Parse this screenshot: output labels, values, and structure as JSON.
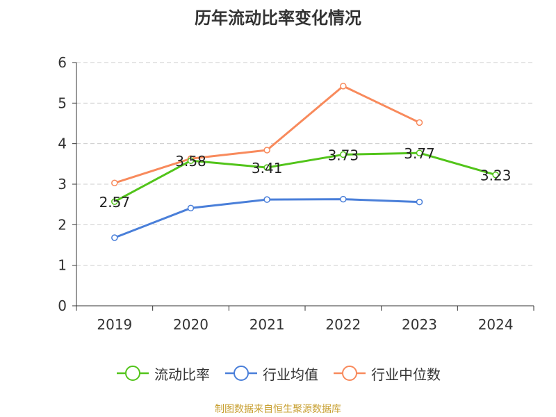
{
  "title": "历年流动比率变化情况",
  "source": "制图数据来自恒生聚源数据库",
  "colors": {
    "current_ratio": "#52c41a",
    "industry_mean": "#4a7fd9",
    "industry_median": "#f88a5c",
    "grid": "#cccccc",
    "axis": "#333333",
    "label": "#222222"
  },
  "chart_data": {
    "type": "line",
    "title": "历年流动比率变化情况",
    "categories": [
      "2019",
      "2020",
      "2021",
      "2022",
      "2023",
      "2024"
    ],
    "ylim": [
      0,
      6
    ],
    "yticks": [
      "0",
      "1",
      "2",
      "3",
      "4",
      "5",
      "6"
    ],
    "grid": true,
    "legend_position": "bottom",
    "series": [
      {
        "name": "流动比率",
        "color_key": "current_ratio",
        "values": [
          2.57,
          3.58,
          3.41,
          3.73,
          3.77,
          3.23
        ],
        "labels": [
          "2.57",
          "3.58",
          "3.41",
          "3.73",
          "3.77",
          "3.23"
        ]
      },
      {
        "name": "行业均值",
        "color_key": "industry_mean",
        "values": [
          1.68,
          2.41,
          2.62,
          2.63,
          2.56,
          null
        ]
      },
      {
        "name": "行业中位数",
        "color_key": "industry_median",
        "values": [
          3.03,
          3.63,
          3.84,
          5.42,
          4.52,
          null
        ]
      }
    ]
  }
}
